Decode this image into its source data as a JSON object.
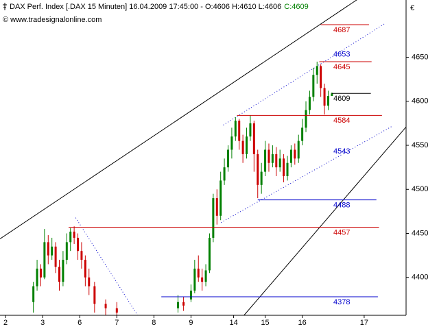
{
  "chart_data": {
    "type": "candlestick",
    "title": "DAX Perf. Index [.DAX  15 Minuten] 16.04.2009 17:45:00 - O:4606 H:4610 L:4606",
    "last_close_label": "C:4609",
    "source": "© www.tradesignalonline.com",
    "currency": "€",
    "xlim": [
      -0.15,
      10.8
    ],
    "xticks": [
      {
        "value": 0,
        "label": "2"
      },
      {
        "value": 1,
        "label": "3"
      },
      {
        "value": 2,
        "label": "6"
      },
      {
        "value": 3,
        "label": "7"
      },
      {
        "value": 4,
        "label": "8"
      },
      {
        "value": 5,
        "label": "9"
      },
      {
        "value": 6.15,
        "label": "14"
      },
      {
        "value": 7,
        "label": "15"
      },
      {
        "value": 8,
        "label": "16"
      },
      {
        "value": 9.67,
        "label": "17"
      }
    ],
    "ylim": [
      4357,
      4715
    ],
    "yticks": [
      4400,
      4450,
      4500,
      4550,
      4600,
      4650
    ],
    "up_color": "#008000",
    "down_color": "#cc0000",
    "x": [
      0.75,
      0.85,
      0.95,
      1.05,
      1.15,
      1.25,
      1.35,
      1.45,
      1.55,
      1.65,
      1.75,
      1.85,
      1.95,
      2.05,
      2.15,
      2.25,
      2.4,
      2.7,
      3.0,
      4.65,
      4.8,
      5.0,
      5.1,
      5.2,
      5.3,
      5.4,
      5.5,
      5.6,
      5.7,
      5.8,
      5.9,
      6.0,
      6.1,
      6.2,
      6.3,
      6.4,
      6.5,
      6.6,
      6.7,
      6.8,
      6.9,
      7.0,
      7.1,
      7.2,
      7.3,
      7.4,
      7.5,
      7.6,
      7.7,
      7.8,
      7.9,
      8.0,
      8.1,
      8.2,
      8.3,
      8.4,
      8.5,
      8.6,
      8.7,
      8.8
    ],
    "open": [
      4372,
      4390,
      4410,
      4400,
      4440,
      4425,
      4435,
      4412,
      4395,
      4420,
      4440,
      4452,
      4445,
      4430,
      4420,
      4400,
      4390,
      4370,
      4365,
      4365,
      4372,
      4375,
      4385,
      4410,
      4400,
      4395,
      4408,
      4445,
      4490,
      4470,
      4510,
      4525,
      4545,
      4560,
      4578,
      4555,
      4540,
      4560,
      4575,
      4540,
      4505,
      4520,
      4545,
      4530,
      4540,
      4525,
      4535,
      4515,
      4530,
      4545,
      4535,
      4555,
      4570,
      4590,
      4605,
      4630,
      4640,
      4615,
      4595,
      4606
    ],
    "high": [
      4395,
      4420,
      4415,
      4455,
      4448,
      4445,
      4440,
      4420,
      4430,
      4450,
      4456,
      4458,
      4450,
      4440,
      4425,
      4410,
      4395,
      4375,
      4372,
      4380,
      4378,
      4392,
      4420,
      4425,
      4410,
      4415,
      4450,
      4495,
      4500,
      4520,
      4535,
      4550,
      4570,
      4582,
      4580,
      4562,
      4570,
      4584,
      4578,
      4545,
      4530,
      4555,
      4552,
      4550,
      4548,
      4545,
      4540,
      4538,
      4550,
      4552,
      4562,
      4580,
      4600,
      4612,
      4638,
      4645,
      4642,
      4620,
      4612,
      4610
    ],
    "low": [
      4360,
      4385,
      4390,
      4398,
      4415,
      4420,
      4405,
      4385,
      4390,
      4415,
      4430,
      4438,
      4420,
      4410,
      4390,
      4380,
      4360,
      4355,
      4350,
      4360,
      4362,
      4372,
      4382,
      4395,
      4385,
      4390,
      4405,
      4440,
      4460,
      4465,
      4505,
      4520,
      4535,
      4555,
      4545,
      4530,
      4535,
      4555,
      4520,
      4490,
      4495,
      4515,
      4520,
      4525,
      4515,
      4520,
      4508,
      4510,
      4525,
      4528,
      4530,
      4550,
      4565,
      4585,
      4600,
      4620,
      4605,
      4585,
      4590,
      4606
    ],
    "close": [
      4390,
      4410,
      4400,
      4440,
      4425,
      4435,
      4412,
      4395,
      4420,
      4440,
      4452,
      4445,
      4430,
      4420,
      4400,
      4390,
      4370,
      4365,
      4360,
      4372,
      4368,
      4385,
      4410,
      4400,
      4395,
      4408,
      4445,
      4490,
      4470,
      4510,
      4525,
      4545,
      4560,
      4578,
      4555,
      4540,
      4560,
      4575,
      4540,
      4505,
      4520,
      4545,
      4530,
      4540,
      4525,
      4535,
      4515,
      4530,
      4545,
      4535,
      4555,
      4570,
      4590,
      4605,
      4630,
      4640,
      4615,
      4595,
      4606,
      4609
    ],
    "levels": [
      {
        "value": 4687,
        "color": "#cc0000",
        "x_start": 8.5,
        "x_end": 9.8
      },
      {
        "value": 4645,
        "color": "#cc0000",
        "x_start": 8.46,
        "x_end": 9.87
      },
      {
        "value": 4609,
        "color": "#000000",
        "x_start": 8.8,
        "x_end": 9.85
      },
      {
        "value": 4584,
        "color": "#cc0000",
        "x_start": 6.24,
        "x_end": 10.15
      },
      {
        "value": 4488,
        "color": "#0000cc",
        "x_start": 6.8,
        "x_end": 10.0
      },
      {
        "value": 4457,
        "color": "#cc0000",
        "x_start": 1.7,
        "x_end": 10.07
      },
      {
        "value": 4378,
        "color": "#0000cc",
        "x_start": 4.2,
        "x_end": 10.04
      }
    ],
    "price_labels": [
      {
        "value": 4653,
        "color": "#0000cc"
      },
      {
        "value": 4543,
        "color": "#0000cc"
      }
    ],
    "trendlines": [
      {
        "x": [
          -0.15,
          9.48
        ],
        "y": [
          4443.8,
          4715.4
        ],
        "color": "#000000",
        "style": "solid"
      },
      {
        "x": [
          6.43,
          10.81
        ],
        "y": [
          4357,
          4571.3
        ],
        "color": "#000000",
        "style": "solid"
      },
      {
        "x": [
          5.87,
          10.22
        ],
        "y": [
          4573,
          4688
        ],
        "color": "#0000cc",
        "style": "dotted"
      },
      {
        "x": [
          5.81,
          10.41
        ],
        "y": [
          4462.3,
          4571.3
        ],
        "color": "#0000cc",
        "style": "dotted"
      },
      {
        "x": [
          1.89,
          3.56
        ],
        "y": [
          4467.8,
          4357
        ],
        "color": "#0000cc",
        "style": "dotted"
      }
    ]
  }
}
